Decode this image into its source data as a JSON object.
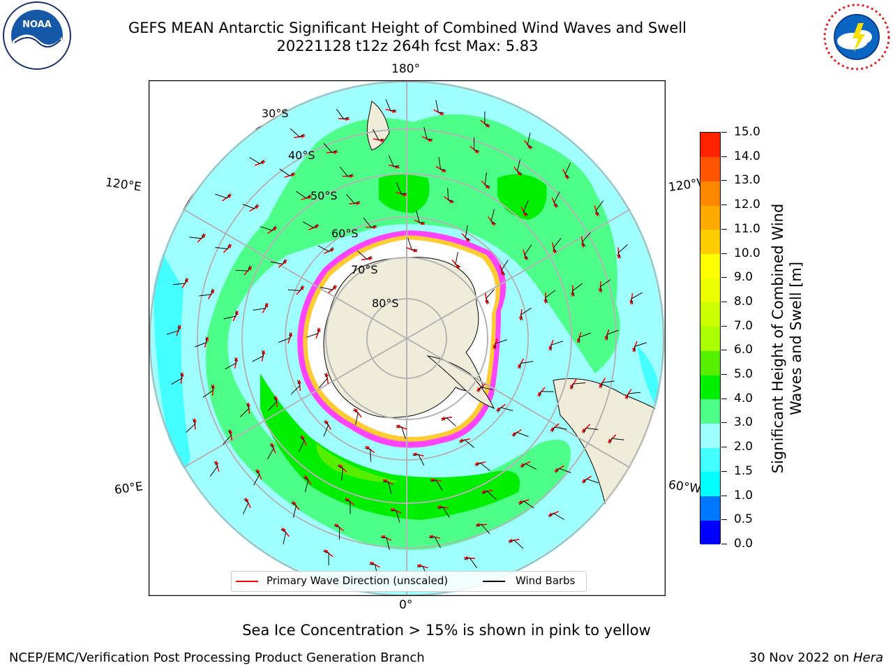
{
  "title": {
    "line1": "GEFS MEAN Antarctic Significant Height of Combined Wind Waves and Swell",
    "line2": "20221128 t12z 264h fcst   Max: 5.83"
  },
  "logos": {
    "left": "NOAA",
    "left_ring": "NATIONAL OCEANIC AND ATMOSPHERIC ADMINISTRATION · U.S. DEPARTMENT OF COMMERCE",
    "right_ring": "NATIONAL WEATHER SERVICE"
  },
  "map": {
    "projection": "south-polar-stereographic",
    "lon_labels": {
      "top": "180°",
      "left_upper": "120°E",
      "right_upper": "120°W",
      "left_lower": "60°E",
      "right_lower": "60°W",
      "bottom": "0°"
    },
    "lat_labels": [
      "30°S",
      "40°S",
      "50°S",
      "60°S",
      "70°S",
      "80°S"
    ],
    "colors": {
      "ocean_low": "#9fffff",
      "ocean_mid": "#4dff88",
      "ocean_high": "#00ee00",
      "land": "#efedda",
      "ice": "#ffffff",
      "ice_edge_pink": "#ff44ff",
      "ice_edge_yellow": "#ffcc33",
      "wave_arrow": "#ff0000",
      "wind_barb": "#000000",
      "graticule": "#b4b4b4"
    }
  },
  "legend": {
    "primary_wave": "Primary Wave Direction (unscaled)",
    "wind_barbs": "Wind Barbs"
  },
  "colorbar": {
    "label": "Significant Height of Combined Wind Waves and Swell [m]",
    "ticks": [
      "0.0",
      "0.5",
      "1.0",
      "1.5",
      "2.0",
      "3.0",
      "4.0",
      "5.0",
      "6.0",
      "7.0",
      "8.0",
      "9.0",
      "10.0",
      "11.0",
      "12.0",
      "13.0",
      "14.0",
      "15.0"
    ],
    "colors": [
      "#0000ff",
      "#0077ff",
      "#00ffff",
      "#44ffff",
      "#9fffff",
      "#4dff88",
      "#00ee00",
      "#55ee00",
      "#aaff00",
      "#ccff00",
      "#eeff00",
      "#ffff00",
      "#ffcc00",
      "#ffaa00",
      "#ff8800",
      "#ff5500",
      "#ff2200",
      "#ff0000"
    ]
  },
  "ice_note": "Sea Ice Concentration > 15% is shown in pink to yellow",
  "footer": {
    "left": "NCEP/EMC/Verification Post Processing Product Generation Branch",
    "right_date": "30 Nov 2022 on ",
    "right_host": "Hera"
  }
}
